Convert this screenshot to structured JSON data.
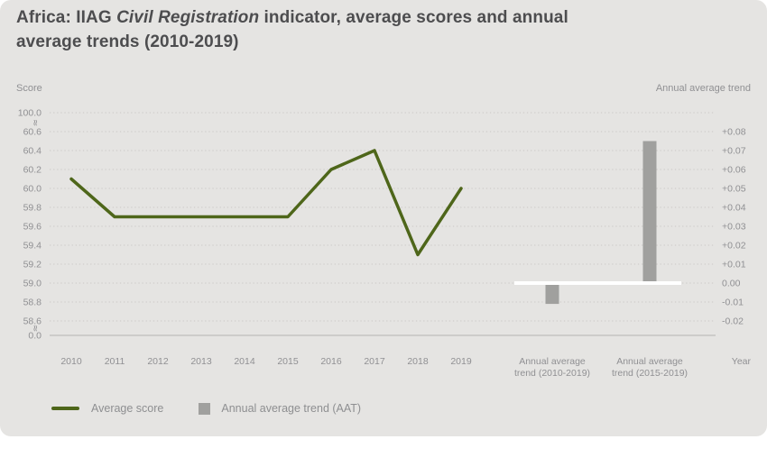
{
  "title": {
    "prefix": "Africa: IIAG ",
    "italic": "Civil Registration",
    "suffix": " indicator, average scores and annual",
    "line2": "average trends (2010-2019)"
  },
  "colors": {
    "card_background": "#e5e4e2",
    "line_green": "#4e661a",
    "bar_gray": "#a0a09e",
    "title_text": "#4d4d4f",
    "axis_text": "#909093",
    "zero_line": "#ffffff"
  },
  "legend": [
    {
      "label": "Average score",
      "type": "line"
    },
    {
      "label": "Annual average trend (AAT)",
      "type": "square"
    }
  ],
  "chart_data": {
    "type": "combo-line-bar",
    "title": "Africa: IIAG Civil Registration indicator, average scores and annual average trends (2010-2019)",
    "left_axis": {
      "label": "Score",
      "ticks": [
        "100.0",
        "60.6",
        "60.4",
        "60.2",
        "60.0",
        "59.8",
        "59.6",
        "59.4",
        "59.2",
        "59.0",
        "58.8",
        "58.6",
        "0.0"
      ],
      "axis_break": true,
      "grid": "dotted"
    },
    "right_axis": {
      "label": "Annual average trend",
      "ticks": [
        "+0.08",
        "+0.07",
        "+0.06",
        "+0.05",
        "+0.04",
        "+0.03",
        "+0.02",
        "+0.01",
        "0.00",
        "-0.01",
        "-0.02"
      ]
    },
    "x_axis_label": "Year",
    "line_series": {
      "name": "Average score",
      "color": "#4e661a",
      "x": [
        "2010",
        "2011",
        "2012",
        "2013",
        "2014",
        "2015",
        "2016",
        "2017",
        "2018",
        "2019"
      ],
      "values": [
        60.1,
        59.7,
        59.7,
        59.7,
        59.7,
        59.7,
        60.2,
        60.4,
        59.3,
        60.0
      ]
    },
    "bar_series": {
      "name": "Annual average trend (AAT)",
      "color": "#a0a09e",
      "categories": [
        "Annual average trend (2010-2019)",
        "Annual average trend (2015-2019)"
      ],
      "values": [
        -0.011,
        0.075
      ],
      "zero_baseline": "0.00"
    }
  }
}
